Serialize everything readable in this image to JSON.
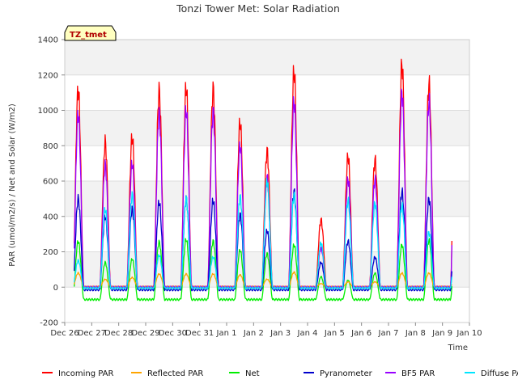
{
  "chart_data": {
    "type": "line",
    "title": "Tonzi Tower Met: Solar Radiation",
    "xlabel": "Time",
    "ylabel": "PAR (umol/m2/s) / Net and Solar (W/m2)",
    "ylim": [
      -200,
      1400
    ],
    "yticks": [
      -200,
      0,
      200,
      400,
      600,
      800,
      1000,
      1200,
      1400
    ],
    "xlim": [
      0,
      15
    ],
    "xticks": [
      0,
      1,
      2,
      3,
      4,
      5,
      6,
      7,
      8,
      9,
      10,
      11,
      12,
      13,
      14,
      15
    ],
    "xtick_labels": [
      "Dec 26",
      "Dec 27",
      "Dec 28",
      "Dec 29",
      "Dec 30",
      "Dec 31",
      "Jan 1",
      "Jan 2",
      "Jan 3",
      "Jan 4",
      "Jan 5",
      "Jan 6",
      "Jan 7",
      "Jan 8",
      "Jan 9",
      "Jan 10"
    ],
    "x_start_day": 0.35,
    "x_end_day": 14.35,
    "grid": true,
    "legend_position": "bottom",
    "tag_label": "TZ_tmet",
    "series": [
      {
        "name": "Incoming PAR",
        "color": "#ff0000",
        "night": 0,
        "peaks": [
          1120,
          820,
          850,
          1110,
          1130,
          1120,
          930,
          770,
          1220,
          380,
          740,
          720,
          1260,
          1150
        ]
      },
      {
        "name": "Reflected PAR",
        "color": "#ffa500",
        "night": 0,
        "peaks": [
          80,
          45,
          55,
          75,
          75,
          75,
          70,
          45,
          85,
          20,
          30,
          30,
          80,
          80
        ]
      },
      {
        "name": "Net",
        "color": "#00ee00",
        "night": -70,
        "peaks": [
          260,
          140,
          160,
          255,
          270,
          260,
          210,
          190,
          240,
          60,
          40,
          80,
          240,
          265
        ]
      },
      {
        "name": "Pyranometer",
        "color": "#0000cc",
        "night": -15,
        "peaks": [
          500,
          400,
          440,
          480,
          500,
          490,
          410,
          320,
          540,
          140,
          260,
          170,
          540,
          500
        ]
      },
      {
        "name": "BF5 PAR",
        "color": "#9900ff",
        "night": 0,
        "peaks": [
          980,
          690,
          700,
          980,
          1000,
          990,
          800,
          620,
          1050,
          220,
          610,
          610,
          1100,
          1050
        ]
      },
      {
        "name": "Diffuse PAR",
        "color": "#00e5ff",
        "night": -5,
        "peaks": [
          150,
          440,
          520,
          180,
          500,
          170,
          510,
          600,
          520,
          250,
          490,
          475,
          460,
          310
        ]
      }
    ]
  }
}
